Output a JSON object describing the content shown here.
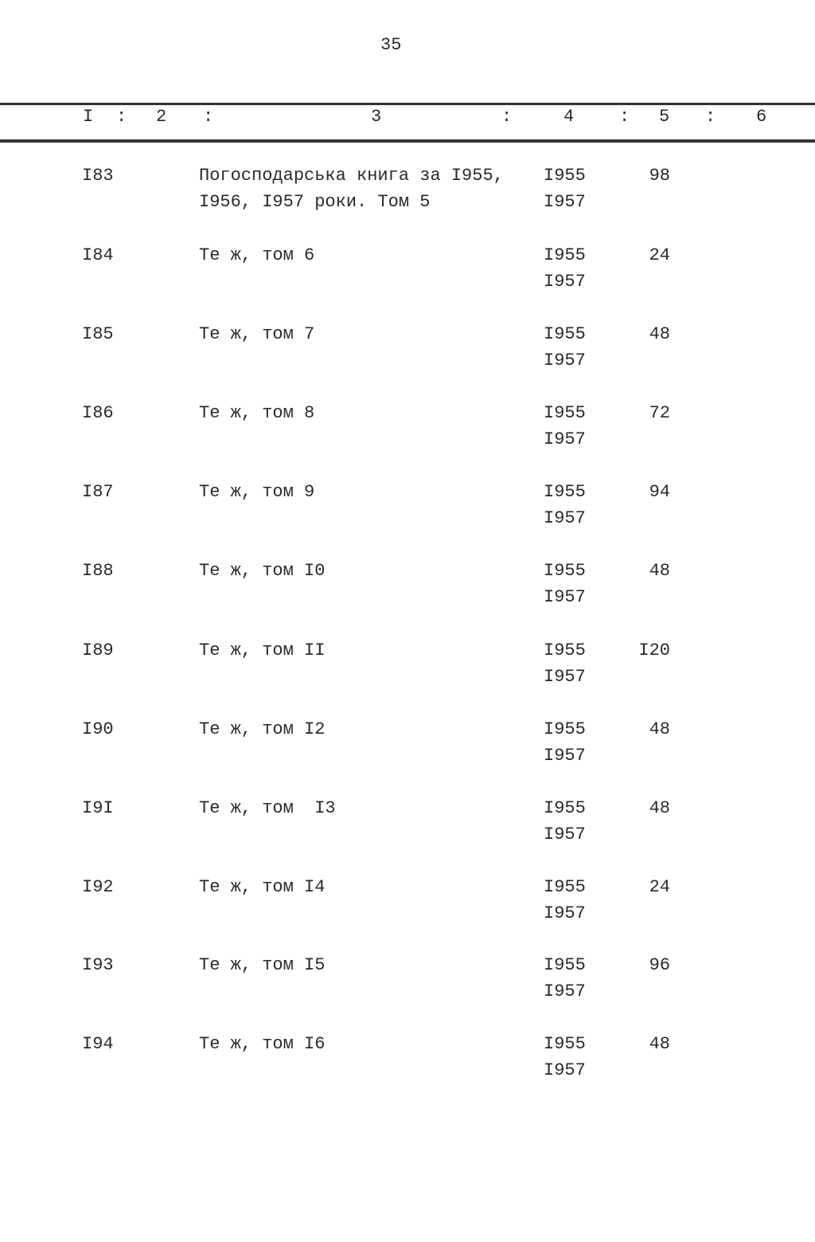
{
  "page_number": "35",
  "header": {
    "columns": [
      "I",
      ":",
      "2",
      ":",
      "3",
      ":",
      "4",
      ":",
      "5",
      ":",
      "6"
    ]
  },
  "rows": [
    {
      "num": "I83",
      "title": [
        "Погосподарська книга за I955,",
        "I956, I957 роки. Том 5"
      ],
      "year_start": "I955",
      "year_end": "I957",
      "count": "98"
    },
    {
      "num": "I84",
      "title": [
        "Те ж, том 6"
      ],
      "year_start": "I955",
      "year_end": "I957",
      "count": "24"
    },
    {
      "num": "I85",
      "title": [
        "Те ж, том 7"
      ],
      "year_start": "I955",
      "year_end": "I957",
      "count": "48"
    },
    {
      "num": "I86",
      "title": [
        "Те ж, том 8"
      ],
      "year_start": "I955",
      "year_end": "I957",
      "count": "72"
    },
    {
      "num": "I87",
      "title": [
        "Те ж, том 9"
      ],
      "year_start": "I955",
      "year_end": "I957",
      "count": "94"
    },
    {
      "num": "I88",
      "title": [
        "Те ж, том I0"
      ],
      "year_start": "I955",
      "year_end": "I957",
      "count": "48"
    },
    {
      "num": "I89",
      "title": [
        "Те ж, том II"
      ],
      "year_start": "I955",
      "year_end": "I957",
      "count": "I20"
    },
    {
      "num": "I90",
      "title": [
        "Те ж, том I2"
      ],
      "year_start": "I955",
      "year_end": "I957",
      "count": "48"
    },
    {
      "num": "I9I",
      "title": [
        "Те ж, том  I3"
      ],
      "year_start": "I955",
      "year_end": "I957",
      "count": "48"
    },
    {
      "num": "I92",
      "title": [
        "Те ж, том I4"
      ],
      "year_start": "I955",
      "year_end": "I957",
      "count": "24"
    },
    {
      "num": "I93",
      "title": [
        "Те ж, том I5"
      ],
      "year_start": "I955",
      "year_end": "I957",
      "count": "96"
    },
    {
      "num": "I94",
      "title": [
        "Те ж, том I6"
      ],
      "year_start": "I955",
      "year_end": "I957",
      "count": "48"
    }
  ]
}
